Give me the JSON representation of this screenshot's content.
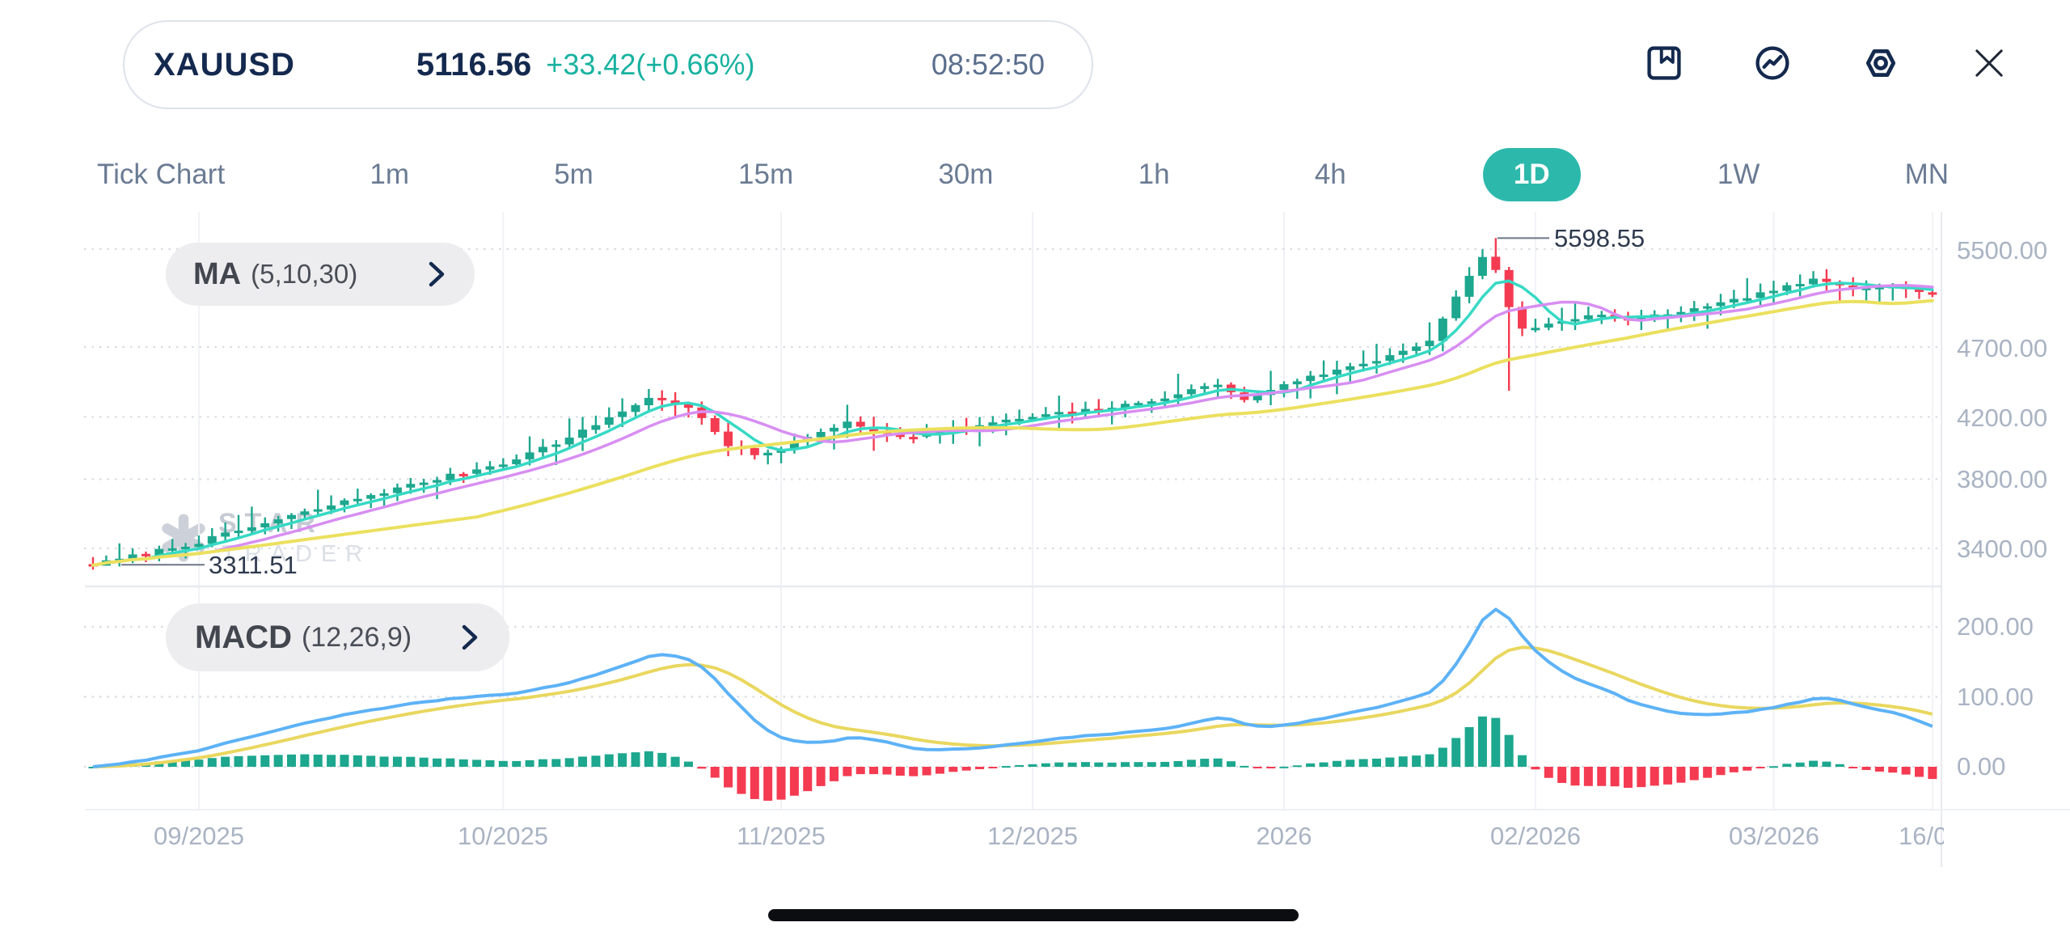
{
  "header": {
    "symbol": "XAUUSD",
    "price": "5116.56",
    "change": "+33.42(+0.66%)",
    "time": "08:52:50"
  },
  "toolbar": {
    "icons": [
      "bookmark-icon",
      "indicator-line-icon",
      "settings-nut-icon",
      "close-icon"
    ]
  },
  "timeframes": {
    "items": [
      "Tick Chart",
      "1m",
      "5m",
      "15m",
      "30m",
      "1h",
      "4h",
      "1D",
      "1W",
      "MN"
    ],
    "selected": "1D"
  },
  "indicators": {
    "ma_label": "MA",
    "ma_params": "(5,10,30)",
    "macd_label": "MACD",
    "macd_params": "(12,26,9)"
  },
  "annotations": {
    "high": "5598.55",
    "low": "3311.51"
  },
  "watermark": {
    "brand_top": "STAR",
    "brand_bottom": "TRADER"
  },
  "price_axis": {
    "ticks": [
      "5500.00",
      "4700.00",
      "4200.00",
      "3800.00",
      "3400.00"
    ]
  },
  "macd_axis": {
    "ticks": [
      "200.00",
      "100.00",
      "0.00"
    ]
  },
  "x_axis": {
    "labels": [
      "09/2025",
      "10/2025",
      "11/2025",
      "12/2025",
      "2026",
      "02/2026",
      "03/2026",
      "16/0"
    ]
  },
  "colors": {
    "accent_teal": "#2cb9ac",
    "up": "#1ca78e",
    "down": "#f43b51",
    "ma5": "#36d9c4",
    "ma10": "#d88ef2",
    "ma30": "#ebe05e",
    "macd_line": "#5db2f6",
    "signal_line": "#e9d75f",
    "navy": "#14294e",
    "change_teal": "#18b2a0"
  },
  "chart_data": {
    "type": "candlestick",
    "symbol": "XAUUSD",
    "timeframe": "1D",
    "bars": 140,
    "price_scale": "log",
    "y_ticks": [
      5500,
      4700,
      4200,
      3800,
      3400
    ],
    "session_high": 5598.55,
    "session_low": 3311.51,
    "last_price": 5116.56,
    "high_bar": 106,
    "close_anchors": [
      [
        0,
        3310
      ],
      [
        8,
        3435
      ],
      [
        20,
        3685
      ],
      [
        31,
        3900
      ],
      [
        36,
        4060
      ],
      [
        42,
        4330
      ],
      [
        45,
        4270
      ],
      [
        48,
        4010
      ],
      [
        50,
        3950
      ],
      [
        52,
        3995
      ],
      [
        57,
        4170
      ],
      [
        61,
        4060
      ],
      [
        65,
        4120
      ],
      [
        71,
        4200
      ],
      [
        79,
        4290
      ],
      [
        85,
        4430
      ],
      [
        87,
        4310
      ],
      [
        90,
        4430
      ],
      [
        97,
        4600
      ],
      [
        101,
        4750
      ],
      [
        105,
        5430
      ],
      [
        106,
        5320
      ],
      [
        107,
        5010
      ],
      [
        108,
        4840
      ],
      [
        111,
        4890
      ],
      [
        114,
        4960
      ],
      [
        116,
        4905
      ],
      [
        119,
        4960
      ],
      [
        122,
        5010
      ],
      [
        127,
        5150
      ],
      [
        130,
        5235
      ],
      [
        133,
        5160
      ],
      [
        136,
        5195
      ],
      [
        139,
        5116.56
      ]
    ],
    "x_labels": [
      {
        "label": "09/2025",
        "bar": 8
      },
      {
        "label": "10/2025",
        "bar": 31
      },
      {
        "label": "11/2025",
        "bar": 52
      },
      {
        "label": "12/2025",
        "bar": 71
      },
      {
        "label": "2026",
        "bar": 90
      },
      {
        "label": "02/2026",
        "bar": 109
      },
      {
        "label": "03/2026",
        "bar": 127
      },
      {
        "label": "16/0",
        "bar": 139
      }
    ],
    "macd": {
      "params": [
        12,
        26,
        9
      ],
      "y_ticks": [
        200,
        100,
        0
      ],
      "display_peak": 225
    },
    "legend": {
      "ma5": "cyan",
      "ma10": "violet",
      "ma30": "yellow",
      "macd": "blue",
      "signal": "yellow",
      "histogram": "green-up/red-down"
    }
  }
}
